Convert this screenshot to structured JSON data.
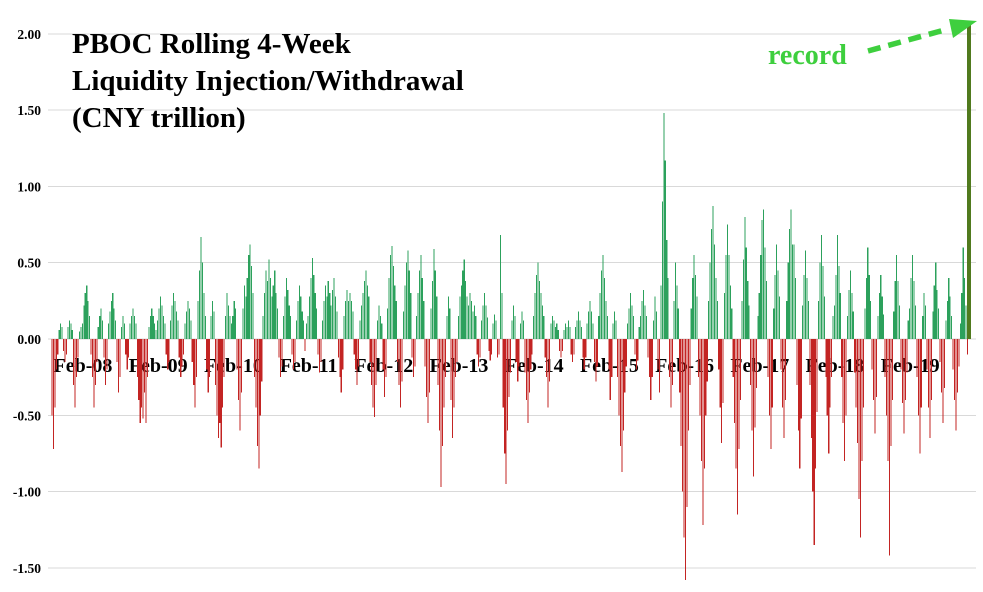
{
  "title": {
    "line1": "PBOC Rolling 4-Week",
    "line2": "Liquidity Injection/Withdrawal",
    "line3": "(CNY trillion)"
  },
  "annotation": {
    "label": "record"
  },
  "colors": {
    "positive": "#2ca15c",
    "negative": "#c32423",
    "record_bar": "#507a1e",
    "annotation": "#3ecf3e",
    "gridline": "#d9d9d9",
    "text": "#000000"
  },
  "chart_data": {
    "type": "bar",
    "title": "PBOC Rolling 4-Week Liquidity Injection/Withdrawal (CNY trillion)",
    "xlabel": "",
    "ylabel": "",
    "frequency": "weekly",
    "ylim": [
      -1.75,
      2.1
    ],
    "grid": "horizontal",
    "legend": "none",
    "y_ticks": [
      {
        "value": 2.0,
        "label": "2.00"
      },
      {
        "value": 1.5,
        "label": "1.50"
      },
      {
        "value": 1.0,
        "label": "1.00"
      },
      {
        "value": 0.5,
        "label": "0.50"
      },
      {
        "value": 0.0,
        "label": "0.00"
      },
      {
        "value": -0.5,
        "label": "-0.50"
      },
      {
        "value": -1.0,
        "label": "-1.00"
      },
      {
        "value": -1.5,
        "label": "-1.50"
      }
    ],
    "x_labels": [
      "Feb-08",
      "Feb-09",
      "Feb-10",
      "Feb-11",
      "Feb-12",
      "Feb-13",
      "Feb-14",
      "Feb-15",
      "Feb-16",
      "Feb-17",
      "Feb-18",
      "Feb-19"
    ],
    "record_value": 2.06,
    "annotations": [
      {
        "text": "record",
        "points_to": "last-bar"
      }
    ],
    "values": [
      -0.5,
      -0.72,
      -0.45,
      -0.2,
      -0.1,
      0.06,
      0.1,
      0.08,
      -0.08,
      -0.15,
      -0.1,
      0.08,
      0.12,
      0.1,
      0.06,
      -0.3,
      -0.45,
      -0.25,
      -0.12,
      0.05,
      0.08,
      0.1,
      0.22,
      0.3,
      0.35,
      0.25,
      0.15,
      -0.1,
      -0.25,
      -0.45,
      -0.3,
      -0.15,
      0.08,
      0.15,
      0.2,
      0.12,
      -0.12,
      -0.3,
      -0.2,
      0.1,
      0.18,
      0.25,
      0.3,
      0.2,
      0.12,
      -0.15,
      -0.35,
      -0.25,
      0.08,
      0.15,
      0.1,
      -0.1,
      -0.2,
      -0.12,
      0.1,
      0.15,
      0.2,
      0.15,
      0.1,
      -0.25,
      -0.4,
      -0.55,
      -0.45,
      -0.52,
      -0.35,
      -0.55,
      -0.25,
      0.08,
      0.15,
      0.2,
      0.15,
      0.1,
      0.06,
      0.12,
      0.2,
      0.28,
      0.22,
      0.15,
      0.1,
      -0.1,
      -0.2,
      -0.15,
      0.12,
      0.22,
      0.3,
      0.25,
      0.18,
      0.12,
      -0.12,
      -0.25,
      -0.18,
      -0.1,
      0.1,
      0.18,
      0.25,
      0.2,
      0.12,
      -0.15,
      -0.3,
      -0.45,
      -0.25,
      0.25,
      0.45,
      0.67,
      0.5,
      0.3,
      0.15,
      -0.2,
      -0.35,
      -0.25,
      0.15,
      0.25,
      0.18,
      -0.3,
      -0.5,
      -0.65,
      -0.55,
      -0.71,
      -0.45,
      -0.25,
      0.15,
      0.3,
      0.22,
      0.15,
      0.1,
      0.15,
      0.25,
      0.2,
      -0.2,
      -0.4,
      -0.6,
      -0.35,
      0.2,
      0.35,
      0.28,
      0.4,
      0.55,
      0.62,
      0.48,
      0.3,
      -0.25,
      -0.45,
      -0.7,
      -0.85,
      -0.5,
      -0.28,
      0.15,
      0.3,
      0.45,
      0.38,
      0.52,
      0.4,
      0.28,
      0.35,
      0.45,
      0.3,
      0.2,
      -0.12,
      -0.25,
      -0.18,
      0.15,
      0.28,
      0.4,
      0.32,
      0.22,
      0.15,
      -0.1,
      -0.2,
      -0.15,
      0.12,
      0.25,
      0.35,
      0.28,
      0.18,
      0.12,
      -0.08,
      0.1,
      0.15,
      0.28,
      0.4,
      0.53,
      0.42,
      0.3,
      0.2,
      -0.1,
      -0.22,
      -0.15,
      0.12,
      0.25,
      0.35,
      0.28,
      0.38,
      0.3,
      0.22,
      0.32,
      0.4,
      0.28,
      0.18,
      -0.12,
      -0.25,
      -0.35,
      -0.2,
      0.15,
      0.25,
      0.32,
      0.25,
      0.3,
      0.25,
      0.18,
      -0.1,
      -0.2,
      -0.3,
      -0.18,
      0.12,
      0.22,
      0.3,
      0.38,
      0.45,
      0.35,
      0.28,
      -0.15,
      -0.3,
      -0.45,
      -0.51,
      -0.3,
      0.12,
      0.22,
      0.15,
      0.1,
      -0.2,
      -0.38,
      -0.25,
      0.2,
      0.4,
      0.55,
      0.61,
      0.48,
      0.35,
      0.25,
      -0.15,
      -0.3,
      -0.45,
      -0.28,
      0.18,
      0.35,
      0.5,
      0.58,
      0.45,
      0.3,
      -0.12,
      -0.25,
      -0.18,
      0.15,
      0.3,
      0.45,
      0.55,
      0.4,
      0.25,
      -0.18,
      -0.38,
      -0.55,
      -0.35,
      0.2,
      0.38,
      0.59,
      0.45,
      0.28,
      -0.3,
      -0.6,
      -0.97,
      -0.7,
      -0.45,
      -0.25,
      0.15,
      0.28,
      0.2,
      -0.4,
      -0.65,
      -0.45,
      -0.25,
      -0.15,
      0.15,
      0.28,
      0.35,
      0.45,
      0.52,
      0.38,
      0.28,
      0.22,
      0.3,
      0.25,
      0.18,
      0.22,
      0.15,
      -0.1,
      -0.18,
      -0.12,
      0.12,
      0.22,
      0.3,
      0.22,
      0.14,
      -0.08,
      -0.14,
      -0.1,
      0.1,
      0.16,
      0.12,
      -0.12,
      -0.1,
      0.68,
      0.3,
      -0.45,
      -0.75,
      -0.95,
      -0.6,
      -0.38,
      -0.22,
      0.12,
      0.22,
      0.15,
      -0.15,
      -0.28,
      -0.18,
      0.1,
      0.18,
      0.12,
      -0.22,
      -0.4,
      -0.55,
      -0.35,
      -0.2,
      -0.1,
      0.15,
      0.3,
      0.42,
      0.5,
      0.38,
      0.3,
      0.22,
      0.15,
      -0.12,
      -0.25,
      -0.45,
      -0.28,
      0.1,
      0.15,
      0.12,
      0.08,
      0.1,
      0.06,
      -0.08,
      -0.12,
      -0.08,
      0.06,
      0.1,
      0.08,
      0.12,
      0.08,
      -0.1,
      -0.15,
      -0.1,
      0.08,
      0.12,
      0.18,
      0.12,
      0.08,
      -0.12,
      -0.2,
      -0.12,
      0.1,
      0.18,
      0.25,
      0.18,
      0.1,
      -0.15,
      -0.28,
      -0.18,
      0.15,
      0.3,
      0.45,
      0.55,
      0.4,
      0.25,
      0.15,
      -0.2,
      -0.4,
      -0.25,
      0.1,
      0.18,
      0.12,
      -0.25,
      -0.5,
      -0.7,
      -0.87,
      -0.6,
      -0.35,
      -0.18,
      0.1,
      0.2,
      0.3,
      0.22,
      0.15,
      -0.1,
      -0.2,
      -0.14,
      0.08,
      0.15,
      0.25,
      0.32,
      0.22,
      0.15,
      -0.12,
      -0.25,
      -0.4,
      -0.25,
      0.12,
      0.28,
      0.18,
      -0.2,
      -0.35,
      0.35,
      0.9,
      1.48,
      1.17,
      0.65,
      0.4,
      -0.25,
      -0.45,
      -0.3,
      0.25,
      0.5,
      0.35,
      0.2,
      -0.35,
      -0.7,
      -1.0,
      -1.3,
      -1.58,
      -1.1,
      -0.6,
      -0.3,
      0.2,
      0.4,
      0.55,
      0.42,
      0.28,
      -0.25,
      -0.5,
      -0.8,
      -1.22,
      -0.85,
      -0.5,
      -0.28,
      0.25,
      0.5,
      0.72,
      0.87,
      0.62,
      0.4,
      0.25,
      -0.2,
      -0.45,
      -0.68,
      -0.42,
      0.3,
      0.55,
      0.75,
      0.55,
      0.35,
      0.2,
      -0.25,
      -0.55,
      -0.85,
      -1.15,
      -0.72,
      -0.4,
      0.25,
      0.52,
      0.8,
      0.6,
      0.38,
      0.22,
      -0.3,
      -0.6,
      -0.9,
      -0.58,
      -0.32,
      0.15,
      0.3,
      0.55,
      0.78,
      0.85,
      0.6,
      0.38,
      -0.25,
      -0.5,
      -0.72,
      -0.45,
      0.2,
      0.42,
      0.62,
      0.45,
      0.28,
      -0.2,
      -0.45,
      -0.65,
      -0.4,
      0.25,
      0.5,
      0.72,
      0.85,
      0.62,
      0.62,
      0.4,
      -0.3,
      -0.6,
      -0.85,
      -0.52,
      0.22,
      0.42,
      0.58,
      0.4,
      0.25,
      -0.3,
      -0.65,
      -1.0,
      -1.35,
      -0.85,
      -0.48,
      0.25,
      0.5,
      0.68,
      0.48,
      0.28,
      -0.25,
      -0.5,
      -0.75,
      -0.45,
      -0.25,
      0.15,
      0.22,
      0.42,
      0.68,
      0.48,
      0.3,
      -0.25,
      -0.55,
      -0.8,
      -0.5,
      0.15,
      0.32,
      0.45,
      0.3,
      0.18,
      -0.22,
      -0.45,
      -0.68,
      -1.05,
      -1.3,
      -0.8,
      -0.45,
      0.2,
      0.4,
      0.6,
      0.42,
      0.25,
      -0.2,
      -0.4,
      -0.62,
      -0.38,
      0.15,
      0.3,
      0.42,
      0.28,
      0.16,
      -0.25,
      -0.5,
      -0.8,
      -1.42,
      -0.7,
      -0.4,
      0.18,
      0.38,
      0.55,
      0.38,
      0.22,
      -0.2,
      -0.42,
      -0.62,
      -0.4,
      -0.22,
      0.12,
      0.2,
      0.4,
      0.55,
      0.38,
      0.22,
      -0.25,
      -0.5,
      -0.75,
      -0.45,
      0.15,
      0.3,
      0.22,
      -0.2,
      -0.45,
      -0.65,
      -0.4,
      0.18,
      0.35,
      0.5,
      0.32,
      0.2,
      -0.15,
      -0.35,
      -0.55,
      -0.32,
      0.12,
      0.25,
      0.4,
      0.28,
      0.15,
      -0.2,
      -0.4,
      -0.6,
      -0.35,
      -0.18,
      0.1,
      0.3,
      0.6,
      0.4,
      0.22,
      -0.1,
      2.06
    ]
  }
}
